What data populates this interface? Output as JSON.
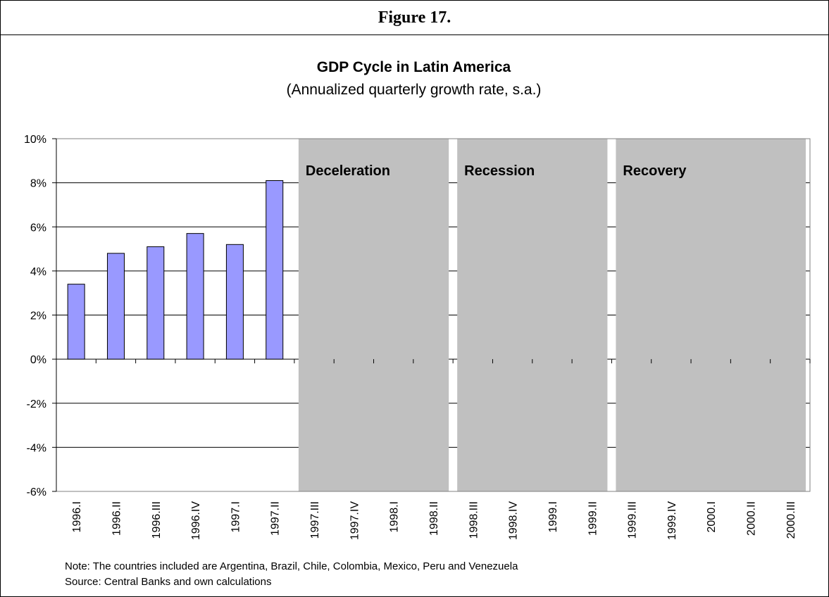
{
  "figure_label": "Figure 17.",
  "notes": {
    "note": "Note: The countries included are Argentina, Brazil, Chile, Colombia, Mexico, Peru and Venezuela",
    "source": "Source: Central Banks and own calculations"
  },
  "chart_data": {
    "type": "bar",
    "title": "GDP Cycle in Latin America",
    "subtitle": "(Annualized quarterly growth rate, s.a.)",
    "xlabel": "",
    "ylabel": "",
    "ylim": [
      -6,
      10
    ],
    "ytick_step": 2,
    "ytick_labels": [
      "10%",
      "8%",
      "6%",
      "4%",
      "2%",
      "0%",
      "-2%",
      "-4%",
      "-6%"
    ],
    "grid": true,
    "bar_color": "#9999ff",
    "shade_color": "#c0c0c0",
    "categories": [
      "1996.I",
      "1996.II",
      "1996.III",
      "1996.IV",
      "1997.I",
      "1997.II",
      "1997.III",
      "1997.IV",
      "1998.I",
      "1998.II",
      "1998.III",
      "1998.IV",
      "1999.I",
      "1999.II",
      "1999.III",
      "1999.IV",
      "2000.I",
      "2000.II",
      "2000.III"
    ],
    "values": [
      3.4,
      4.8,
      5.1,
      5.7,
      5.2,
      8.1,
      null,
      null,
      null,
      null,
      null,
      null,
      null,
      null,
      null,
      null,
      null,
      null,
      null
    ],
    "phases": [
      {
        "label": "Deceleration",
        "from": "1997.III",
        "to": "1998.II"
      },
      {
        "label": "Recession",
        "from": "1998.III",
        "to": "1999.II"
      },
      {
        "label": "Recovery",
        "from": "1999.III",
        "to": "2000.III"
      }
    ]
  }
}
